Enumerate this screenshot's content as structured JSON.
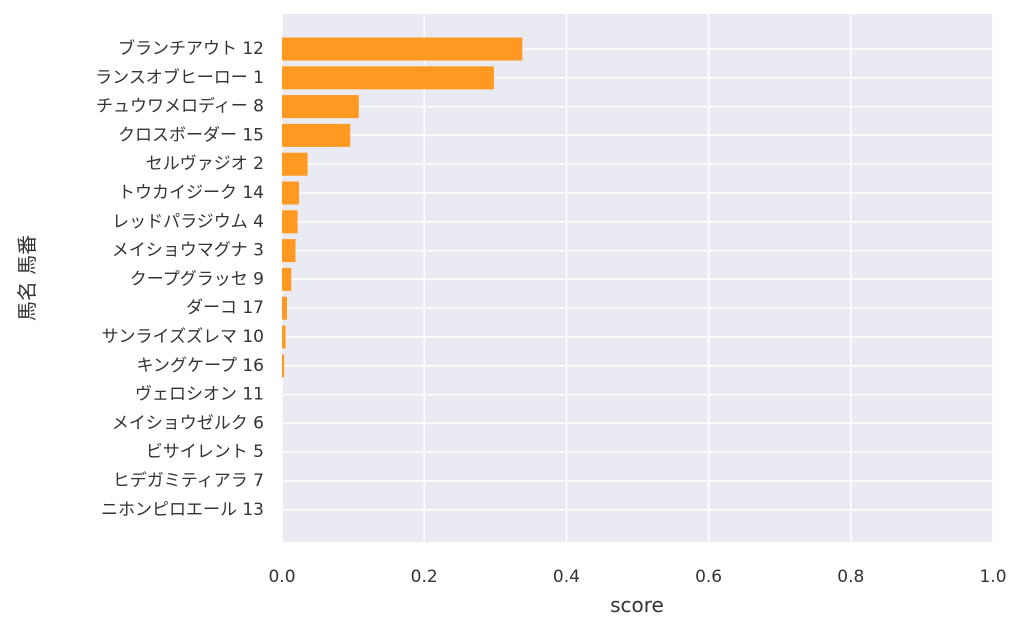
{
  "chart_data": {
    "type": "bar",
    "orientation": "horizontal",
    "xlabel": "score",
    "ylabel": "馬名 馬番",
    "xlim": [
      0,
      1
    ],
    "xticks": [
      "0.0",
      "0.2",
      "0.4",
      "0.6",
      "0.8",
      "1.0"
    ],
    "grid": true,
    "colors": {
      "bar": "#ff9922",
      "plot_bg": "#eaeaf2",
      "grid": "#ffffff"
    },
    "categories": [
      "ブランチアウト 12",
      "ランスオブヒーロー 1",
      "チュウワメロディー 8",
      "クロスボーダー 15",
      "セルヴァジオ 2",
      "トウカイジーク 14",
      "レッドパラジウム 4",
      "メイショウマグナ 3",
      "クープグラッセ 9",
      "ダーコ 17",
      "サンライズズレマ 10",
      "キングケープ 16",
      "ヴェロシオン 11",
      "メイショウゼルク 6",
      "ビサイレント 5",
      "ヒデガミティアラ 7",
      "ニホンピロエール 13"
    ],
    "values": [
      0.338,
      0.298,
      0.108,
      0.096,
      0.036,
      0.024,
      0.022,
      0.019,
      0.013,
      0.007,
      0.005,
      0.003,
      0.0,
      0.0,
      0.0,
      0.0,
      0.0
    ]
  }
}
